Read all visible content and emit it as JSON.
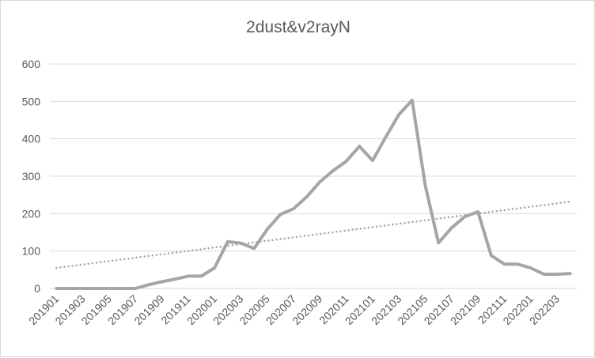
{
  "chart_data": {
    "type": "line",
    "title": "2dust&v2rayN",
    "xlabel": "",
    "ylabel": "",
    "ylim": [
      0,
      600
    ],
    "yticks": [
      0,
      100,
      200,
      300,
      400,
      500,
      600
    ],
    "grid": true,
    "legend": "none",
    "x": [
      "201901",
      "201902",
      "201903",
      "201904",
      "201905",
      "201906",
      "201907",
      "201908",
      "201909",
      "201910",
      "201911",
      "201912",
      "202001",
      "202002",
      "202003",
      "202004",
      "202005",
      "202006",
      "202007",
      "202008",
      "202009",
      "202010",
      "202011",
      "202012",
      "202101",
      "202102",
      "202103",
      "202104",
      "202105",
      "202106",
      "202107",
      "202108",
      "202109",
      "202110",
      "202111",
      "202112",
      "202201",
      "202202",
      "202203",
      "202204"
    ],
    "x_tick_labels": [
      "201901",
      "201903",
      "201905",
      "201907",
      "201909",
      "201911",
      "202001",
      "202003",
      "202005",
      "202007",
      "202009",
      "202011",
      "202101",
      "202103",
      "202105",
      "202107",
      "202109",
      "202111",
      "202201",
      "202203"
    ],
    "series": [
      {
        "values": [
          0,
          0,
          0,
          0,
          0,
          0,
          0,
          10,
          18,
          25,
          33,
          33,
          55,
          125,
          121,
          107,
          158,
          198,
          213,
          245,
          285,
          315,
          340,
          380,
          342,
          405,
          465,
          503,
          275,
          122,
          162,
          192,
          205,
          88,
          65,
          65,
          55,
          38,
          38,
          40
        ]
      }
    ],
    "trendline": {
      "type": "linear",
      "start": 55,
      "end": 232
    },
    "colors": {
      "series": "#a5a5a5",
      "grid": "#d9d9d9",
      "text": "#595959"
    }
  }
}
